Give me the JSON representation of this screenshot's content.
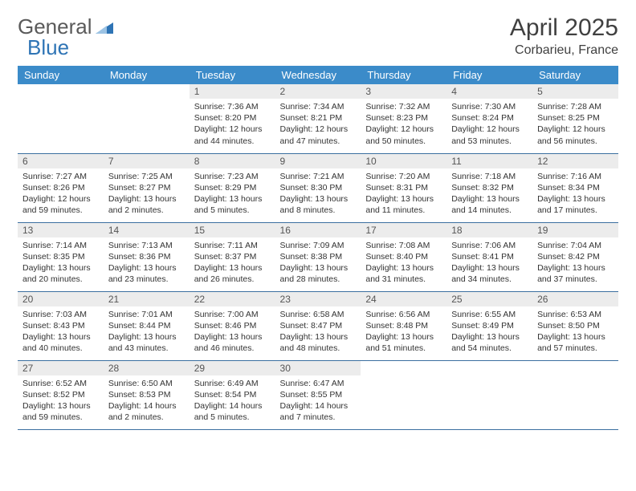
{
  "logo": {
    "part1": "General",
    "part2": "Blue"
  },
  "title": "April 2025",
  "location": "Corbarieu, France",
  "colors": {
    "header_bg": "#3b8bc9",
    "header_text": "#ffffff",
    "daynum_bg": "#ececec",
    "row_border": "#3b6fa0",
    "logo_gray": "#5a5a5a",
    "logo_blue": "#2e74b5"
  },
  "weekdays": [
    "Sunday",
    "Monday",
    "Tuesday",
    "Wednesday",
    "Thursday",
    "Friday",
    "Saturday"
  ],
  "first_weekday_index": 2,
  "days": [
    {
      "n": 1,
      "sunrise": "7:36 AM",
      "sunset": "8:20 PM",
      "daylight": "12 hours and 44 minutes."
    },
    {
      "n": 2,
      "sunrise": "7:34 AM",
      "sunset": "8:21 PM",
      "daylight": "12 hours and 47 minutes."
    },
    {
      "n": 3,
      "sunrise": "7:32 AM",
      "sunset": "8:23 PM",
      "daylight": "12 hours and 50 minutes."
    },
    {
      "n": 4,
      "sunrise": "7:30 AM",
      "sunset": "8:24 PM",
      "daylight": "12 hours and 53 minutes."
    },
    {
      "n": 5,
      "sunrise": "7:28 AM",
      "sunset": "8:25 PM",
      "daylight": "12 hours and 56 minutes."
    },
    {
      "n": 6,
      "sunrise": "7:27 AM",
      "sunset": "8:26 PM",
      "daylight": "12 hours and 59 minutes."
    },
    {
      "n": 7,
      "sunrise": "7:25 AM",
      "sunset": "8:27 PM",
      "daylight": "13 hours and 2 minutes."
    },
    {
      "n": 8,
      "sunrise": "7:23 AM",
      "sunset": "8:29 PM",
      "daylight": "13 hours and 5 minutes."
    },
    {
      "n": 9,
      "sunrise": "7:21 AM",
      "sunset": "8:30 PM",
      "daylight": "13 hours and 8 minutes."
    },
    {
      "n": 10,
      "sunrise": "7:20 AM",
      "sunset": "8:31 PM",
      "daylight": "13 hours and 11 minutes."
    },
    {
      "n": 11,
      "sunrise": "7:18 AM",
      "sunset": "8:32 PM",
      "daylight": "13 hours and 14 minutes."
    },
    {
      "n": 12,
      "sunrise": "7:16 AM",
      "sunset": "8:34 PM",
      "daylight": "13 hours and 17 minutes."
    },
    {
      "n": 13,
      "sunrise": "7:14 AM",
      "sunset": "8:35 PM",
      "daylight": "13 hours and 20 minutes."
    },
    {
      "n": 14,
      "sunrise": "7:13 AM",
      "sunset": "8:36 PM",
      "daylight": "13 hours and 23 minutes."
    },
    {
      "n": 15,
      "sunrise": "7:11 AM",
      "sunset": "8:37 PM",
      "daylight": "13 hours and 26 minutes."
    },
    {
      "n": 16,
      "sunrise": "7:09 AM",
      "sunset": "8:38 PM",
      "daylight": "13 hours and 28 minutes."
    },
    {
      "n": 17,
      "sunrise": "7:08 AM",
      "sunset": "8:40 PM",
      "daylight": "13 hours and 31 minutes."
    },
    {
      "n": 18,
      "sunrise": "7:06 AM",
      "sunset": "8:41 PM",
      "daylight": "13 hours and 34 minutes."
    },
    {
      "n": 19,
      "sunrise": "7:04 AM",
      "sunset": "8:42 PM",
      "daylight": "13 hours and 37 minutes."
    },
    {
      "n": 20,
      "sunrise": "7:03 AM",
      "sunset": "8:43 PM",
      "daylight": "13 hours and 40 minutes."
    },
    {
      "n": 21,
      "sunrise": "7:01 AM",
      "sunset": "8:44 PM",
      "daylight": "13 hours and 43 minutes."
    },
    {
      "n": 22,
      "sunrise": "7:00 AM",
      "sunset": "8:46 PM",
      "daylight": "13 hours and 46 minutes."
    },
    {
      "n": 23,
      "sunrise": "6:58 AM",
      "sunset": "8:47 PM",
      "daylight": "13 hours and 48 minutes."
    },
    {
      "n": 24,
      "sunrise": "6:56 AM",
      "sunset": "8:48 PM",
      "daylight": "13 hours and 51 minutes."
    },
    {
      "n": 25,
      "sunrise": "6:55 AM",
      "sunset": "8:49 PM",
      "daylight": "13 hours and 54 minutes."
    },
    {
      "n": 26,
      "sunrise": "6:53 AM",
      "sunset": "8:50 PM",
      "daylight": "13 hours and 57 minutes."
    },
    {
      "n": 27,
      "sunrise": "6:52 AM",
      "sunset": "8:52 PM",
      "daylight": "13 hours and 59 minutes."
    },
    {
      "n": 28,
      "sunrise": "6:50 AM",
      "sunset": "8:53 PM",
      "daylight": "14 hours and 2 minutes."
    },
    {
      "n": 29,
      "sunrise": "6:49 AM",
      "sunset": "8:54 PM",
      "daylight": "14 hours and 5 minutes."
    },
    {
      "n": 30,
      "sunrise": "6:47 AM",
      "sunset": "8:55 PM",
      "daylight": "14 hours and 7 minutes."
    }
  ],
  "labels": {
    "sunrise": "Sunrise:",
    "sunset": "Sunset:",
    "daylight": "Daylight:"
  }
}
